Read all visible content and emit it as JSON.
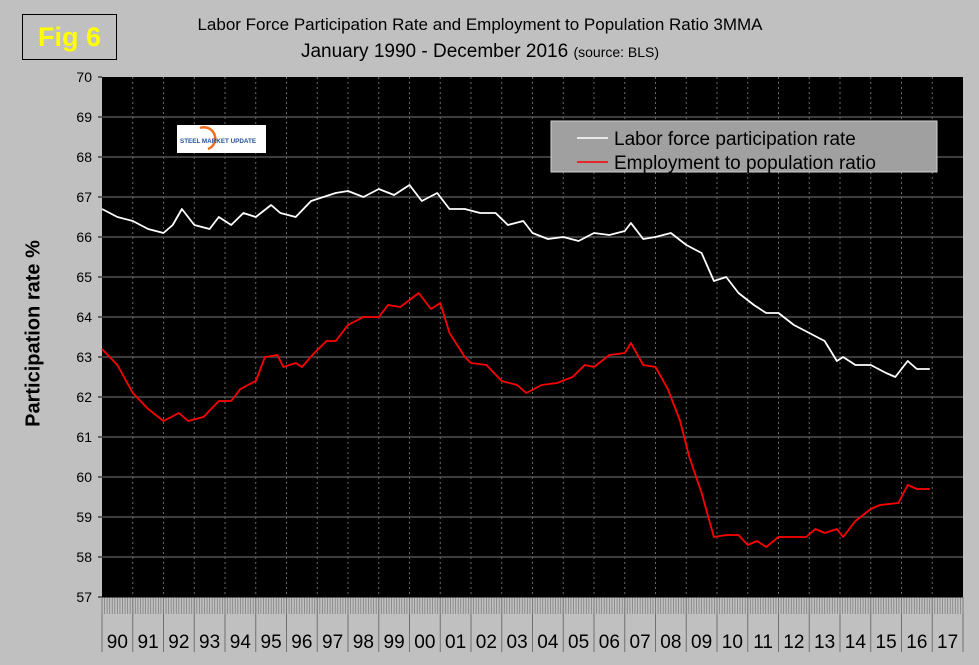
{
  "fig_label": "Fig 6",
  "logo_text": "STEEL MARKET UPDATE",
  "chart_data": {
    "type": "line",
    "title": "Labor Force Participation Rate and Employment to Population Ratio 3MMA",
    "subtitle": "January 1990 - December 2016",
    "source": "(source: BLS)",
    "xlabel": "",
    "ylabel": "Participation rate %",
    "ylim": [
      57,
      70
    ],
    "yticks": [
      "57",
      "58",
      "59",
      "60",
      "61",
      "62",
      "63",
      "64",
      "65",
      "66",
      "67",
      "68",
      "69",
      "70"
    ],
    "xlim": [
      1990,
      2018
    ],
    "xticks": [
      "90",
      "91",
      "92",
      "93",
      "94",
      "95",
      "96",
      "97",
      "98",
      "99",
      "00",
      "01",
      "02",
      "03",
      "04",
      "05",
      "06",
      "07",
      "08",
      "09",
      "10",
      "11",
      "12",
      "13",
      "14",
      "15",
      "16",
      "17"
    ],
    "grid": true,
    "legend_position": "top-right",
    "background": "#000000",
    "series": [
      {
        "name": "Labor force participation rate",
        "color": "#ffffff",
        "x": [
          1990.0,
          1990.5,
          1991.0,
          1991.5,
          1992.0,
          1992.3,
          1992.6,
          1993.0,
          1993.5,
          1993.8,
          1994.2,
          1994.6,
          1995.0,
          1995.5,
          1995.8,
          1996.3,
          1996.8,
          1997.2,
          1997.6,
          1998.0,
          1998.5,
          1999.0,
          1999.5,
          2000.0,
          2000.4,
          2000.9,
          2001.3,
          2001.8,
          2002.3,
          2002.8,
          2003.2,
          2003.7,
          2004.0,
          2004.5,
          2005.0,
          2005.5,
          2006.0,
          2006.5,
          2007.0,
          2007.2,
          2007.6,
          2008.0,
          2008.5,
          2009.0,
          2009.5,
          2009.9,
          2010.3,
          2010.7,
          2011.2,
          2011.6,
          2012.0,
          2012.5,
          2013.0,
          2013.5,
          2013.9,
          2014.1,
          2014.5,
          2015.0,
          2015.5,
          2015.8,
          2016.2,
          2016.5,
          2016.92
        ],
        "y": [
          66.7,
          66.5,
          66.4,
          66.2,
          66.1,
          66.3,
          66.7,
          66.3,
          66.2,
          66.5,
          66.3,
          66.6,
          66.5,
          66.8,
          66.6,
          66.5,
          66.9,
          67.0,
          67.1,
          67.15,
          67.0,
          67.2,
          67.05,
          67.3,
          66.9,
          67.1,
          66.7,
          66.7,
          66.6,
          66.6,
          66.3,
          66.4,
          66.1,
          65.95,
          66.0,
          65.9,
          66.1,
          66.05,
          66.15,
          66.35,
          65.95,
          66.0,
          66.1,
          65.8,
          65.6,
          64.9,
          65.0,
          64.6,
          64.3,
          64.1,
          64.1,
          63.8,
          63.6,
          63.4,
          62.9,
          63.0,
          62.8,
          62.8,
          62.6,
          62.5,
          62.9,
          62.7,
          62.7
        ]
      },
      {
        "name": "Employment to population ratio",
        "color": "#ff0000",
        "x": [
          1990.0,
          1990.5,
          1991.0,
          1991.5,
          1992.0,
          1992.5,
          1992.8,
          1993.3,
          1993.8,
          1994.2,
          1994.5,
          1995.0,
          1995.3,
          1995.7,
          1995.9,
          1996.3,
          1996.5,
          1996.9,
          1997.3,
          1997.6,
          1998.0,
          1998.5,
          1999.0,
          1999.3,
          1999.7,
          2000.3,
          2000.7,
          2001.0,
          2001.3,
          2001.8,
          2002.0,
          2002.5,
          2003.0,
          2003.5,
          2003.8,
          2004.3,
          2004.8,
          2005.3,
          2005.7,
          2006.0,
          2006.5,
          2007.0,
          2007.2,
          2007.6,
          2008.0,
          2008.4,
          2008.8,
          2009.1,
          2009.5,
          2009.9,
          2010.3,
          2010.7,
          2011.0,
          2011.3,
          2011.6,
          2012.0,
          2012.5,
          2012.9,
          2013.2,
          2013.5,
          2013.9,
          2014.1,
          2014.5,
          2015.0,
          2015.3,
          2015.9,
          2016.2,
          2016.5,
          2016.92
        ],
        "y": [
          63.2,
          62.8,
          62.1,
          61.7,
          61.4,
          61.6,
          61.4,
          61.5,
          61.9,
          61.9,
          62.2,
          62.4,
          63.0,
          63.05,
          62.75,
          62.85,
          62.75,
          63.1,
          63.4,
          63.4,
          63.8,
          64.0,
          64.0,
          64.3,
          64.25,
          64.6,
          64.2,
          64.35,
          63.6,
          63.0,
          62.85,
          62.8,
          62.4,
          62.3,
          62.1,
          62.3,
          62.35,
          62.5,
          62.8,
          62.75,
          63.05,
          63.1,
          63.35,
          62.8,
          62.75,
          62.2,
          61.4,
          60.5,
          59.6,
          58.5,
          58.55,
          58.55,
          58.3,
          58.4,
          58.25,
          58.5,
          58.5,
          58.5,
          58.7,
          58.6,
          58.7,
          58.5,
          58.9,
          59.2,
          59.3,
          59.35,
          59.8,
          59.7,
          59.7
        ]
      }
    ]
  }
}
